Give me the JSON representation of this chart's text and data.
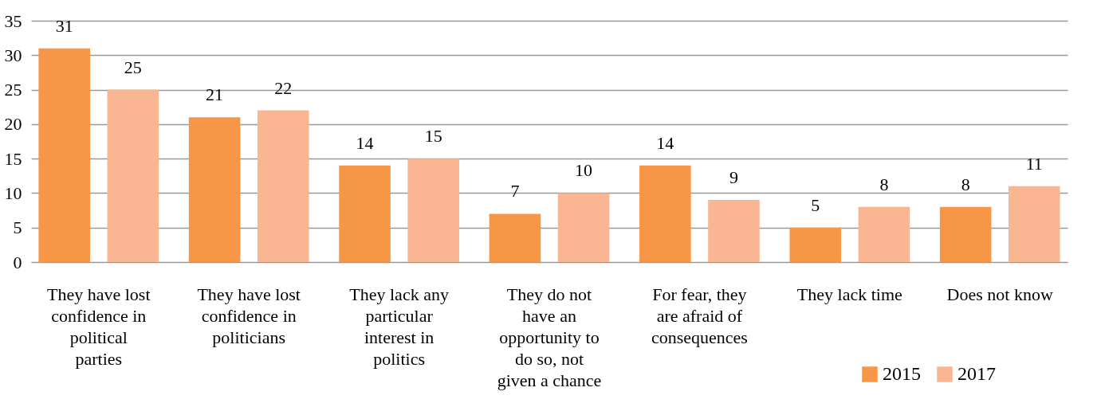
{
  "chart_data": {
    "type": "bar",
    "categories": [
      "They have lost confidence in political parties",
      "They have lost confidence in politicians",
      "They lack any particular interest in politics",
      "They do not have an opportunity to do so, not given a chance",
      "For fear, they are afraid of consequences",
      "They lack time",
      "Does not know"
    ],
    "series": [
      {
        "name": "2015",
        "color": "#f79646",
        "values": [
          31,
          21,
          14,
          7,
          14,
          5,
          8
        ]
      },
      {
        "name": "2017",
        "color": "#fab592",
        "values": [
          25,
          22,
          15,
          10,
          9,
          8,
          11
        ]
      }
    ],
    "ylim": [
      0,
      35
    ],
    "yticks": [
      0,
      5,
      10,
      15,
      20,
      25,
      30,
      35
    ],
    "grid": "y",
    "legend": "bottom right",
    "data_labels": true
  }
}
